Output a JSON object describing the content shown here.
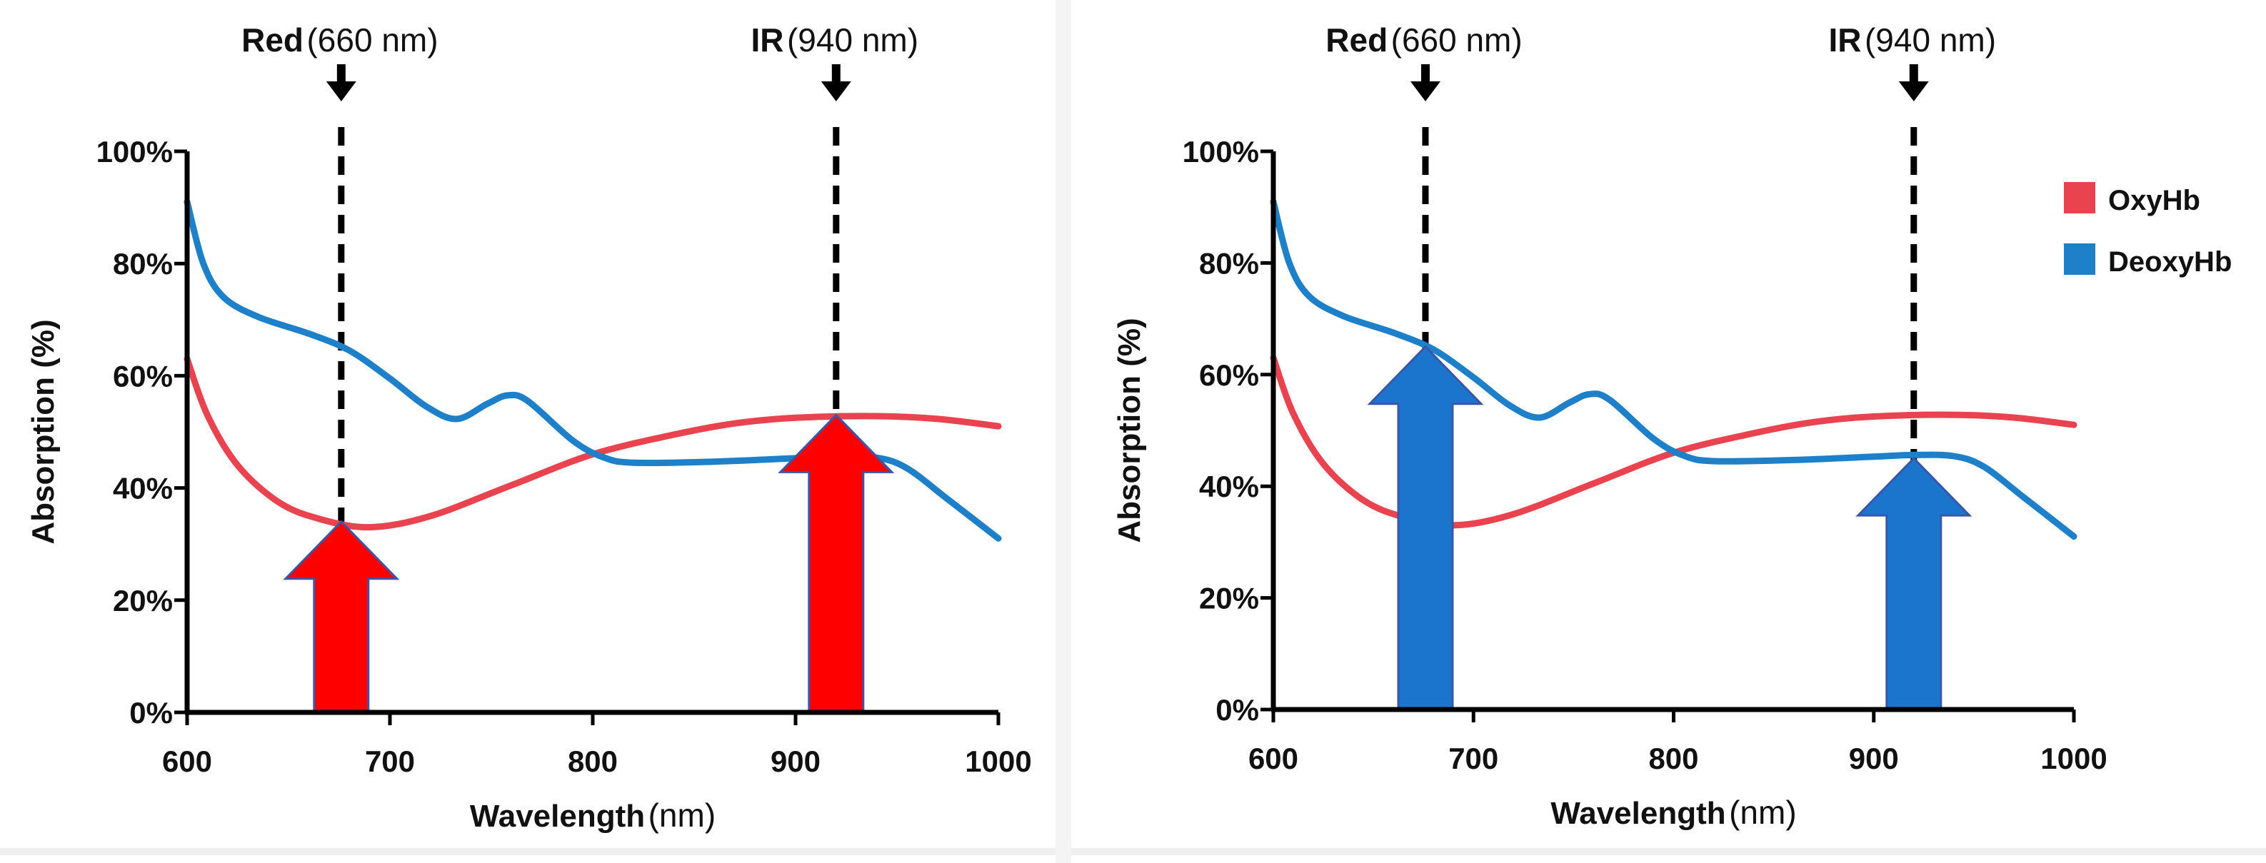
{
  "colors": {
    "oxy": "#e8434f",
    "deoxy": "#1d80c8",
    "arrow_red": "#ff0000",
    "arrow_blue": "#1b75cc",
    "axis": "#000000"
  },
  "chart_data": [
    {
      "type": "line",
      "title": "",
      "xlabel_bold": "Wavelength",
      "xlabel_unit": "(nm)",
      "ylabel": "Absorption (%)",
      "xlim": [
        600,
        1000
      ],
      "ylim": [
        0,
        100
      ],
      "xticks": [
        600,
        700,
        800,
        900,
        1000
      ],
      "xtick_labels": [
        "600",
        "700",
        "800",
        "900",
        "1000"
      ],
      "yticks": [
        0,
        20,
        40,
        60,
        80,
        100
      ],
      "ytick_labels": [
        "0%",
        "20%",
        "40%",
        "60%",
        "80%",
        "100%"
      ],
      "grid": false,
      "series": [
        {
          "name": "OxyHb",
          "color": "#e8434f",
          "points": [
            [
              600,
              63
            ],
            [
              610,
              53
            ],
            [
              625,
              44
            ],
            [
              645,
              37.5
            ],
            [
              665,
              34.5
            ],
            [
              690,
              33
            ],
            [
              720,
              35
            ],
            [
              760,
              40.5
            ],
            [
              800,
              46
            ],
            [
              840,
              49.5
            ],
            [
              870,
              51.5
            ],
            [
              900,
              52.5
            ],
            [
              940,
              52.8
            ],
            [
              970,
              52.3
            ],
            [
              1000,
              51
            ]
          ]
        },
        {
          "name": "DeoxyHb",
          "color": "#1d80c8",
          "points": [
            [
              600,
              91
            ],
            [
              608,
              80
            ],
            [
              618,
              74
            ],
            [
              635,
              70.5
            ],
            [
              660,
              67.5
            ],
            [
              680,
              64.5
            ],
            [
              700,
              59.5
            ],
            [
              718,
              54.5
            ],
            [
              733,
              52.3
            ],
            [
              748,
              55
            ],
            [
              758,
              56.5
            ],
            [
              768,
              55.5
            ],
            [
              790,
              48.5
            ],
            [
              805,
              45.5
            ],
            [
              820,
              44.5
            ],
            [
              860,
              44.7
            ],
            [
              900,
              45.3
            ],
            [
              920,
              45.6
            ],
            [
              940,
              45.4
            ],
            [
              955,
              43.5
            ],
            [
              975,
              38
            ],
            [
              1000,
              31
            ]
          ]
        }
      ],
      "markers": [
        {
          "name_bold": "Red",
          "name_rest": "(660 nm)",
          "x": 676
        },
        {
          "name_bold": "IR",
          "name_rest": "(940 nm)",
          "x": 920
        }
      ],
      "arrows": [
        {
          "x": 676,
          "value": 34,
          "color": "#ff0000"
        },
        {
          "x": 920,
          "value": 53,
          "color": "#ff0000"
        }
      ]
    },
    {
      "type": "line",
      "title": "",
      "xlabel_bold": "Wavelength",
      "xlabel_unit": "(nm)",
      "ylabel": "Absorption (%)",
      "xlim": [
        600,
        1000
      ],
      "ylim": [
        0,
        100
      ],
      "xticks": [
        600,
        700,
        800,
        900,
        1000
      ],
      "xtick_labels": [
        "600",
        "700",
        "800",
        "900",
        "1000"
      ],
      "yticks": [
        0,
        20,
        40,
        60,
        80,
        100
      ],
      "ytick_labels": [
        "0%",
        "20%",
        "40%",
        "60%",
        "80%",
        "100%"
      ],
      "grid": false,
      "legend_position": "top-right",
      "legend": [
        {
          "name": "OxyHb",
          "color": "#e8434f"
        },
        {
          "name": "DeoxyHb",
          "color": "#1d80c8"
        }
      ],
      "series": [
        {
          "name": "OxyHb",
          "color": "#e8434f",
          "points": [
            [
              600,
              63
            ],
            [
              610,
              53
            ],
            [
              625,
              44
            ],
            [
              645,
              37.5
            ],
            [
              665,
              34.5
            ],
            [
              690,
              33
            ],
            [
              720,
              35
            ],
            [
              760,
              40.5
            ],
            [
              800,
              46
            ],
            [
              840,
              49.5
            ],
            [
              870,
              51.5
            ],
            [
              900,
              52.5
            ],
            [
              940,
              52.8
            ],
            [
              970,
              52.3
            ],
            [
              1000,
              51
            ]
          ]
        },
        {
          "name": "DeoxyHb",
          "color": "#1d80c8",
          "points": [
            [
              600,
              91
            ],
            [
              608,
              80
            ],
            [
              618,
              74
            ],
            [
              635,
              70.5
            ],
            [
              660,
              67.5
            ],
            [
              680,
              64.5
            ],
            [
              700,
              59.5
            ],
            [
              718,
              54.5
            ],
            [
              733,
              52.3
            ],
            [
              748,
              55
            ],
            [
              758,
              56.5
            ],
            [
              768,
              55.5
            ],
            [
              790,
              48.5
            ],
            [
              805,
              45.5
            ],
            [
              820,
              44.5
            ],
            [
              860,
              44.7
            ],
            [
              900,
              45.3
            ],
            [
              920,
              45.6
            ],
            [
              940,
              45.4
            ],
            [
              955,
              43.5
            ],
            [
              975,
              38
            ],
            [
              1000,
              31
            ]
          ]
        }
      ],
      "markers": [
        {
          "name_bold": "Red",
          "name_rest": "(660 nm)",
          "x": 676
        },
        {
          "name_bold": "IR",
          "name_rest": "(940 nm)",
          "x": 920
        }
      ],
      "arrows": [
        {
          "x": 676,
          "value": 65,
          "color": "#1b75cc"
        },
        {
          "x": 920,
          "value": 45,
          "color": "#1b75cc"
        }
      ]
    }
  ]
}
